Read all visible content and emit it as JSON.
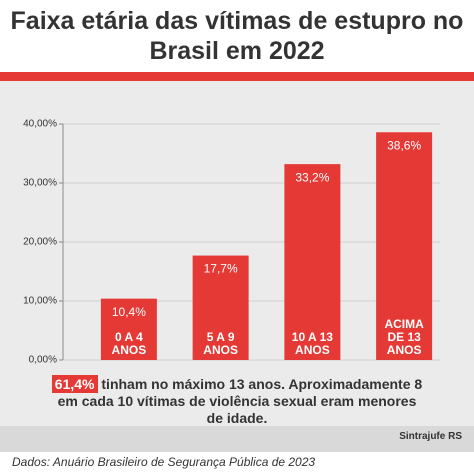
{
  "chart_data": {
    "type": "bar",
    "title": "Faixa etária das vítimas de estupro no Brasil em 2022",
    "categories": [
      "0 A 4 ANOS",
      "5 A 9 ANOS",
      "10 A 13 ANOS",
      "ACIMA DE 13 ANOS"
    ],
    "values": [
      10.4,
      17.7,
      33.2,
      38.6
    ],
    "value_labels": [
      "10,4%",
      "17,7%",
      "33,2%",
      "38,6%"
    ],
    "color": "#e53935",
    "ylim": [
      0,
      40
    ],
    "yticks": [
      {
        "value": 0,
        "label": "0,00%"
      },
      {
        "value": 10,
        "label": "10,00%"
      },
      {
        "value": 20,
        "label": "20,00%"
      },
      {
        "value": 30,
        "label": "30,00%"
      },
      {
        "value": 40,
        "label": "40,00%"
      }
    ],
    "grid": true,
    "annotation_highlight": "61,4%",
    "annotation": "tinham no máximo 13 anos. Aproximadamente 8 em cada 10 vítimas de violência sexual eram menores de idade.",
    "source": "Dados: Anuário Brasileiro de Segurança Pública de 2023",
    "logo": "Sintrajufe RS"
  }
}
